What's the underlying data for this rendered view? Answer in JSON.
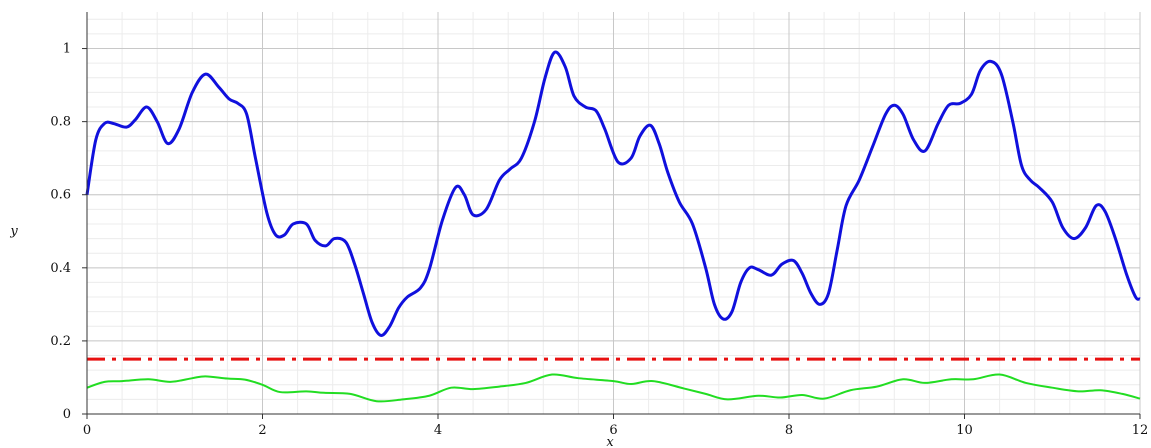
{
  "chart_data": {
    "type": "line",
    "title": "",
    "xlabel": "x",
    "ylabel": "y",
    "xlim": [
      0,
      12
    ],
    "ylim": [
      0,
      1.1
    ],
    "x_ticks": [
      "0",
      "2",
      "4",
      "6",
      "8",
      "10",
      "12"
    ],
    "y_ticks": [
      "0",
      "0.2",
      "0.4",
      "0.6",
      "0.8",
      "1"
    ],
    "grid": true,
    "legend": "none",
    "series": [
      {
        "color": "#1010dd",
        "style": "solid",
        "x": [
          0,
          0.1,
          0.2,
          0.3,
          0.45,
          0.55,
          0.68,
          0.8,
          0.92,
          1.05,
          1.2,
          1.35,
          1.5,
          1.62,
          1.72,
          1.82,
          1.92,
          2.05,
          2.15,
          2.25,
          2.35,
          2.5,
          2.6,
          2.72,
          2.82,
          2.95,
          3.05,
          3.15,
          3.25,
          3.35,
          3.45,
          3.55,
          3.65,
          3.8,
          3.9,
          4.05,
          4.2,
          4.3,
          4.4,
          4.55,
          4.7,
          4.82,
          4.95,
          5.1,
          5.22,
          5.33,
          5.45,
          5.55,
          5.68,
          5.8,
          5.9,
          6.05,
          6.2,
          6.3,
          6.42,
          6.52,
          6.62,
          6.75,
          6.9,
          7.05,
          7.15,
          7.25,
          7.35,
          7.45,
          7.55,
          7.65,
          7.8,
          7.92,
          8.05,
          8.15,
          8.25,
          8.35,
          8.45,
          8.55,
          8.65,
          8.8,
          8.95,
          9.1,
          9.2,
          9.3,
          9.42,
          9.55,
          9.7,
          9.82,
          9.95,
          10.08,
          10.18,
          10.3,
          10.42,
          10.55,
          10.65,
          10.75,
          10.85,
          11.0,
          11.12,
          11.25,
          11.38,
          11.5,
          11.6,
          11.72,
          11.85,
          11.95,
          12.0
        ],
        "y": [
          0.6,
          0.75,
          0.795,
          0.795,
          0.785,
          0.805,
          0.84,
          0.8,
          0.74,
          0.78,
          0.88,
          0.93,
          0.895,
          0.862,
          0.85,
          0.82,
          0.7,
          0.55,
          0.49,
          0.49,
          0.52,
          0.52,
          0.475,
          0.46,
          0.48,
          0.47,
          0.41,
          0.33,
          0.25,
          0.215,
          0.24,
          0.29,
          0.32,
          0.345,
          0.395,
          0.53,
          0.62,
          0.6,
          0.545,
          0.56,
          0.64,
          0.67,
          0.7,
          0.8,
          0.92,
          0.99,
          0.95,
          0.87,
          0.84,
          0.83,
          0.78,
          0.69,
          0.7,
          0.76,
          0.79,
          0.74,
          0.66,
          0.58,
          0.52,
          0.4,
          0.3,
          0.26,
          0.28,
          0.36,
          0.4,
          0.395,
          0.38,
          0.41,
          0.42,
          0.385,
          0.33,
          0.3,
          0.33,
          0.45,
          0.57,
          0.64,
          0.73,
          0.82,
          0.845,
          0.82,
          0.75,
          0.72,
          0.795,
          0.845,
          0.85,
          0.875,
          0.94,
          0.965,
          0.93,
          0.8,
          0.68,
          0.64,
          0.62,
          0.58,
          0.51,
          0.48,
          0.51,
          0.57,
          0.555,
          0.48,
          0.38,
          0.32,
          0.315
        ]
      },
      {
        "color": "#e81010",
        "style": "dashdot",
        "x": [
          0,
          12
        ],
        "y": [
          0.15,
          0.15
        ]
      },
      {
        "color": "#22dd22",
        "style": "solid",
        "x": [
          0,
          0.2,
          0.4,
          0.7,
          0.95,
          1.2,
          1.35,
          1.6,
          1.8,
          2.0,
          2.2,
          2.5,
          2.7,
          3.0,
          3.3,
          3.6,
          3.9,
          4.15,
          4.4,
          4.7,
          5.0,
          5.3,
          5.6,
          6.0,
          6.2,
          6.45,
          6.8,
          7.05,
          7.3,
          7.65,
          7.9,
          8.15,
          8.4,
          8.7,
          9.0,
          9.3,
          9.55,
          9.85,
          10.1,
          10.4,
          10.7,
          11.0,
          11.3,
          11.55,
          11.8,
          12.0
        ],
        "y": [
          0.072,
          0.088,
          0.09,
          0.095,
          0.088,
          0.098,
          0.103,
          0.097,
          0.094,
          0.08,
          0.06,
          0.062,
          0.058,
          0.055,
          0.035,
          0.04,
          0.05,
          0.072,
          0.068,
          0.075,
          0.085,
          0.108,
          0.098,
          0.09,
          0.082,
          0.09,
          0.07,
          0.055,
          0.04,
          0.05,
          0.045,
          0.052,
          0.042,
          0.065,
          0.075,
          0.095,
          0.085,
          0.095,
          0.095,
          0.108,
          0.085,
          0.072,
          0.062,
          0.065,
          0.055,
          0.042
        ]
      }
    ]
  }
}
